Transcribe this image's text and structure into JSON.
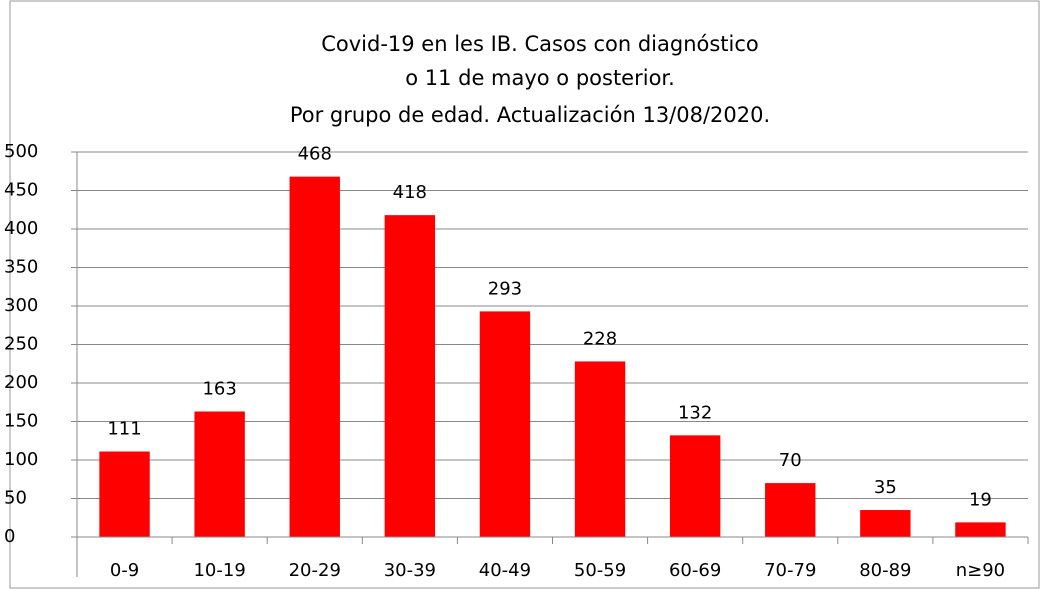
{
  "chart_data": {
    "type": "bar",
    "title": [
      "Covid-19 en les IB. Casos con diagnóstico",
      "o 11 de mayo o posterior.",
      "Por grupo de edad. Actualización  13/08/2020."
    ],
    "categories": [
      "0-9",
      "10-19",
      "20-29",
      "30-39",
      "40-49",
      "50-59",
      "60-69",
      "70-79",
      "80-89",
      "n≥90"
    ],
    "values": [
      111,
      163,
      468,
      418,
      293,
      228,
      132,
      70,
      35,
      19
    ],
    "color": "#ff0000",
    "ylim": [
      0,
      500
    ],
    "yticks": [
      0,
      50,
      100,
      150,
      200,
      250,
      300,
      350,
      400,
      450,
      500
    ],
    "grid": true
  }
}
